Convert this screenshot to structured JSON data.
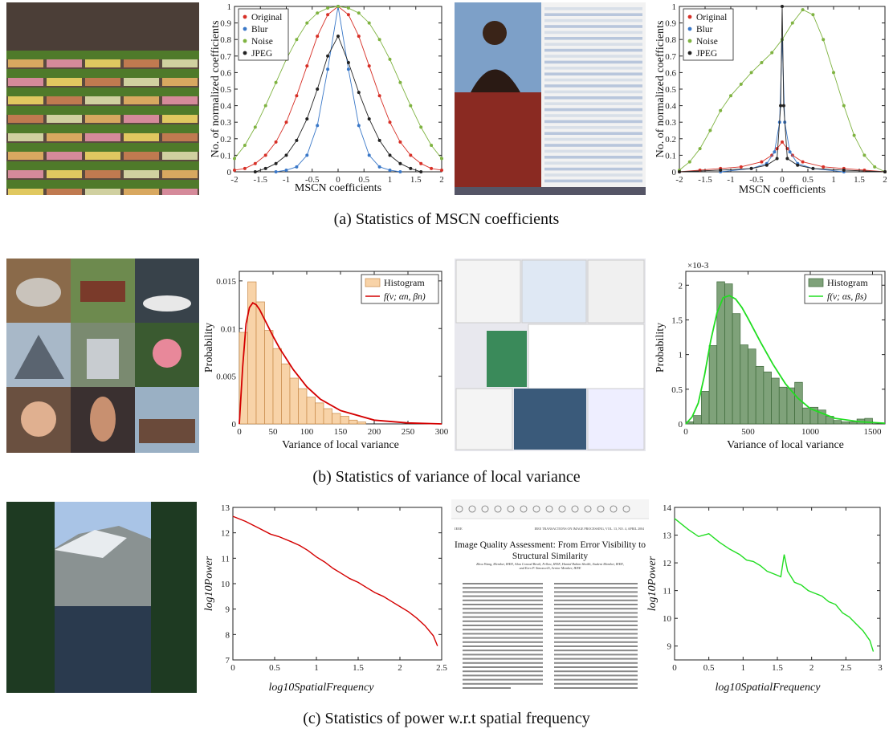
{
  "captions": {
    "a": "(a)  Statistics of MSCN coefficients",
    "b": "(b)  Statistics of variance of local variance",
    "c": "(c)  Statistics of power w.r.t spatial frequency"
  },
  "doc_screenshot": {
    "header_left": "IEEE",
    "header_right": "IEEE TRANSACTIONS ON IMAGE PROCESSING, VOL. 13, NO. 4, APRIL 2004",
    "title_line1": "Image Quality Assessment: From Error Visibility to",
    "title_line2": "Structural Similarity",
    "authors": "Zhou Wang, Member, IEEE, Alan Conrad Bovik, Fellow, IEEE, Hamid Rahim Sheikh, Student Member, IEEE, and Eero P. Simoncelli, Senior Member, IEEE",
    "zoom": "25%"
  },
  "colors": {
    "original": "#d73027",
    "blur": "#3a78c8",
    "noise": "#7fb341",
    "jpeg": "#222222",
    "hist_orange_fill": "#f8d3a8",
    "hist_green_fill": "#7fa27a",
    "fit_red": "#d40000",
    "fit_green": "#22dd22"
  },
  "chart_data": [
    {
      "type": "line",
      "xlabel": "MSCN coefficients",
      "ylabel": "No. of normalized coefficients",
      "xlim": [
        -2,
        2
      ],
      "ylim": [
        0,
        1
      ],
      "xticks": [
        "-2",
        "-1.5",
        "-1",
        "-0.5",
        "0",
        "0.5",
        "1",
        "1.5",
        "2"
      ],
      "yticks": [
        "0",
        "0.1",
        "0.2",
        "0.3",
        "0.4",
        "0.5",
        "0.6",
        "0.7",
        "0.8",
        "0.9",
        "1"
      ],
      "legend": "top-left",
      "series": [
        {
          "name": "Original",
          "x": [
            -2,
            -1.8,
            -1.6,
            -1.4,
            -1.2,
            -1.0,
            -0.8,
            -0.6,
            -0.4,
            -0.2,
            0,
            0.2,
            0.4,
            0.6,
            0.8,
            1.0,
            1.2,
            1.4,
            1.6,
            1.8,
            2
          ],
          "y": [
            0.01,
            0.02,
            0.05,
            0.1,
            0.18,
            0.3,
            0.46,
            0.64,
            0.82,
            0.95,
            1.0,
            0.95,
            0.82,
            0.64,
            0.46,
            0.3,
            0.18,
            0.1,
            0.05,
            0.02,
            0.01
          ]
        },
        {
          "name": "Blur",
          "x": [
            -1.2,
            -1.0,
            -0.8,
            -0.6,
            -0.4,
            -0.2,
            0,
            0.2,
            0.4,
            0.6,
            0.8,
            1.0,
            1.2
          ],
          "y": [
            0.0,
            0.01,
            0.03,
            0.1,
            0.28,
            0.62,
            1.0,
            0.62,
            0.28,
            0.1,
            0.03,
            0.01,
            0.0
          ]
        },
        {
          "name": "Noise",
          "x": [
            -2,
            -1.8,
            -1.6,
            -1.4,
            -1.2,
            -1.0,
            -0.8,
            -0.6,
            -0.4,
            -0.2,
            0,
            0.2,
            0.4,
            0.6,
            0.8,
            1.0,
            1.2,
            1.4,
            1.6,
            1.8,
            2
          ],
          "y": [
            0.08,
            0.16,
            0.27,
            0.4,
            0.54,
            0.68,
            0.8,
            0.9,
            0.96,
            0.99,
            1.0,
            0.99,
            0.96,
            0.9,
            0.8,
            0.68,
            0.54,
            0.4,
            0.27,
            0.16,
            0.08
          ]
        },
        {
          "name": "JPEG",
          "x": [
            -1.6,
            -1.4,
            -1.2,
            -1.0,
            -0.8,
            -0.6,
            -0.4,
            -0.2,
            0,
            0.2,
            0.4,
            0.6,
            0.8,
            1.0,
            1.2,
            1.4,
            1.6
          ],
          "y": [
            0.0,
            0.02,
            0.05,
            0.1,
            0.19,
            0.32,
            0.5,
            0.7,
            0.82,
            0.66,
            0.48,
            0.32,
            0.19,
            0.1,
            0.05,
            0.02,
            0.0
          ]
        }
      ]
    },
    {
      "type": "line",
      "xlabel": "MSCN coefficients",
      "ylabel": "No. of normalized coefficients",
      "xlim": [
        -2,
        2
      ],
      "ylim": [
        0,
        1
      ],
      "xticks": [
        "-2",
        "-1.5",
        "-1",
        "-0.5",
        "0",
        "0.5",
        "1",
        "1.5",
        "2"
      ],
      "yticks": [
        "0",
        "0.1",
        "0.2",
        "0.3",
        "0.4",
        "0.5",
        "0.6",
        "0.7",
        "0.8",
        "0.9",
        "1"
      ],
      "legend": "top-left",
      "series": [
        {
          "name": "Original",
          "x": [
            -2,
            -1.6,
            -1.2,
            -0.8,
            -0.4,
            -0.2,
            -0.1,
            0,
            0.1,
            0.2,
            0.4,
            0.8,
            1.2,
            1.6,
            2
          ],
          "y": [
            0.0,
            0.01,
            0.02,
            0.03,
            0.06,
            0.1,
            0.14,
            0.18,
            0.14,
            0.1,
            0.06,
            0.03,
            0.02,
            0.01,
            0.0
          ]
        },
        {
          "name": "Blur",
          "x": [
            -1.2,
            -0.6,
            -0.3,
            -0.15,
            -0.05,
            0,
            0.05,
            0.15,
            0.3,
            0.6,
            1.2
          ],
          "y": [
            0.0,
            0.02,
            0.05,
            0.12,
            0.3,
            0.8,
            0.3,
            0.12,
            0.05,
            0.02,
            0.0
          ]
        },
        {
          "name": "Noise",
          "x": [
            -2,
            -1.8,
            -1.6,
            -1.4,
            -1.2,
            -1.0,
            -0.8,
            -0.6,
            -0.4,
            -0.2,
            0,
            0.2,
            0.4,
            0.6,
            0.8,
            1.0,
            1.2,
            1.4,
            1.6,
            1.8,
            2
          ],
          "y": [
            0.01,
            0.06,
            0.14,
            0.25,
            0.37,
            0.46,
            0.53,
            0.6,
            0.66,
            0.72,
            0.8,
            0.9,
            0.98,
            0.95,
            0.8,
            0.6,
            0.4,
            0.22,
            0.1,
            0.03,
            0.0
          ]
        },
        {
          "name": "JPEG",
          "x": [
            -2,
            -1.2,
            -0.6,
            -0.3,
            -0.1,
            -0.03,
            0,
            0.03,
            0.1,
            0.3,
            0.6,
            1.2,
            2
          ],
          "y": [
            0.0,
            0.01,
            0.02,
            0.04,
            0.08,
            0.4,
            1.0,
            0.4,
            0.08,
            0.04,
            0.02,
            0.01,
            0.0
          ]
        }
      ]
    },
    {
      "type": "bar",
      "xlabel": "Variance of local variance",
      "ylabel": "Probability",
      "xlim": [
        0,
        300
      ],
      "ylim": [
        0,
        0.016
      ],
      "xticks": [
        "0",
        "50",
        "100",
        "150",
        "200",
        "250",
        "300"
      ],
      "yticks": [
        "0",
        "0.005",
        "0.01",
        "0.015"
      ],
      "legend": "top-right",
      "histogram": {
        "name": "Histogram",
        "bin_edges": [
          0,
          12.5,
          25,
          37.5,
          50,
          62.5,
          75,
          87.5,
          100,
          112.5,
          125,
          137.5,
          150,
          162.5,
          175,
          187.5
        ],
        "values": [
          0.0096,
          0.0149,
          0.0128,
          0.0098,
          0.0079,
          0.0063,
          0.0048,
          0.0037,
          0.0028,
          0.0022,
          0.0016,
          0.0011,
          0.0008,
          0.0004,
          0.0002
        ]
      },
      "fit": {
        "name": "f(v; αn, βn)",
        "x": [
          0,
          5,
          10,
          15,
          20,
          25,
          30,
          40,
          50,
          60,
          80,
          100,
          120,
          150,
          200,
          250,
          300
        ],
        "y": [
          0,
          0.006,
          0.0105,
          0.0122,
          0.0127,
          0.0125,
          0.012,
          0.0106,
          0.0092,
          0.0079,
          0.0057,
          0.0039,
          0.0026,
          0.0014,
          0.0004,
          0.0001,
          0
        ]
      }
    },
    {
      "type": "bar",
      "xlabel": "Variance of local variance",
      "ylabel": "Probability",
      "exponent_label": "×10-3",
      "xlim": [
        0,
        1600
      ],
      "ylim": [
        0,
        0.0022
      ],
      "xticks": [
        "0",
        "500",
        "1000",
        "1500"
      ],
      "yticks": [
        "0",
        "0.5",
        "1",
        "1.5",
        "2"
      ],
      "legend": "top-right",
      "histogram": {
        "name": "Histogram",
        "bin_edges": [
          0,
          62.5,
          125,
          187.5,
          250,
          312.5,
          375,
          437.5,
          500,
          562.5,
          625,
          687.5,
          750,
          812.5,
          875,
          937.5,
          1000,
          1062.5,
          1125,
          1187.5,
          1250,
          1312.5,
          1375,
          1437.5,
          1500
        ],
        "values": [
          3e-05,
          0.00012,
          0.00047,
          0.00113,
          0.00205,
          0.00202,
          0.00159,
          0.00114,
          0.00108,
          0.00083,
          0.00075,
          0.00066,
          0.00053,
          0.00052,
          0.0006,
          0.00023,
          0.00024,
          0.0002,
          0.00011,
          5e-05,
          3e-05,
          3e-05,
          7e-05,
          8e-05
        ]
      },
      "fit": {
        "name": "f(v; αs, βs)",
        "x": [
          0,
          50,
          100,
          150,
          200,
          250,
          300,
          350,
          400,
          450,
          500,
          600,
          700,
          800,
          900,
          1000,
          1200,
          1400,
          1600
        ],
        "y": [
          0,
          0.0001,
          0.0003,
          0.0007,
          0.0012,
          0.0016,
          0.00182,
          0.00185,
          0.0018,
          0.00168,
          0.00152,
          0.00118,
          0.00086,
          0.00058,
          0.00037,
          0.00022,
          8e-05,
          3e-05,
          1e-05
        ]
      }
    },
    {
      "type": "line",
      "xlabel": "log10SpatialFrequency",
      "ylabel": "log10Power",
      "xlim": [
        0,
        2.5
      ],
      "ylim": [
        7,
        13
      ],
      "xticks": [
        "0",
        "0.5",
        "1",
        "1.5",
        "2",
        "2.5"
      ],
      "yticks": [
        "7",
        "8",
        "9",
        "10",
        "11",
        "12",
        "13"
      ],
      "series": [
        {
          "name": "",
          "x": [
            0,
            0.15,
            0.3,
            0.45,
            0.55,
            0.7,
            0.8,
            0.9,
            1.0,
            1.1,
            1.2,
            1.3,
            1.4,
            1.5,
            1.6,
            1.7,
            1.8,
            1.9,
            2.0,
            2.1,
            2.2,
            2.3,
            2.4,
            2.45
          ],
          "y": [
            12.65,
            12.45,
            12.2,
            11.95,
            11.85,
            11.65,
            11.5,
            11.3,
            11.05,
            10.85,
            10.6,
            10.4,
            10.2,
            10.05,
            9.85,
            9.65,
            9.5,
            9.3,
            9.1,
            8.9,
            8.65,
            8.35,
            7.95,
            7.55
          ]
        }
      ]
    },
    {
      "type": "line",
      "xlabel": "log10SpatialFrequency",
      "ylabel": "log10Power",
      "xlim": [
        0,
        3
      ],
      "ylim": [
        8.5,
        14
      ],
      "xticks": [
        "0",
        "0.5",
        "1",
        "1.5",
        "2",
        "2.5",
        "3"
      ],
      "yticks": [
        "9",
        "10",
        "11",
        "12",
        "13",
        "14"
      ],
      "series": [
        {
          "name": "",
          "x": [
            0,
            0.1,
            0.2,
            0.35,
            0.5,
            0.65,
            0.8,
            0.95,
            1.05,
            1.15,
            1.25,
            1.35,
            1.45,
            1.55,
            1.6,
            1.65,
            1.7,
            1.75,
            1.85,
            1.95,
            2.05,
            2.15,
            2.25,
            2.35,
            2.45,
            2.55,
            2.65,
            2.75,
            2.85,
            2.9
          ],
          "y": [
            13.6,
            13.4,
            13.2,
            12.95,
            13.05,
            12.75,
            12.5,
            12.3,
            12.1,
            12.05,
            11.9,
            11.7,
            11.6,
            11.5,
            12.3,
            11.7,
            11.5,
            11.3,
            11.2,
            11.0,
            10.9,
            10.8,
            10.6,
            10.5,
            10.2,
            10.05,
            9.8,
            9.55,
            9.2,
            8.8
          ]
        }
      ]
    }
  ]
}
